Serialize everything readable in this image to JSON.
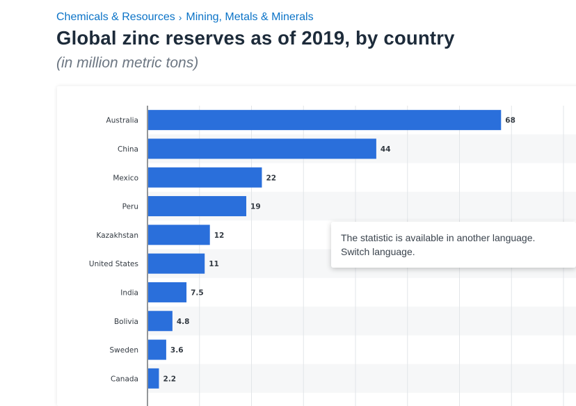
{
  "breadcrumb": {
    "items": [
      "Chemicals & Resources",
      "Mining, Metals & Minerals"
    ],
    "separator": "›"
  },
  "header": {
    "title": "Global zinc reserves as of 2019, by country",
    "subtitle": "(in million metric tons)"
  },
  "tooltip": {
    "message": "The statistic is available in another language.",
    "action": "Switch language."
  },
  "colors": {
    "bar": "#2a6fdb",
    "link": "#0b73c7",
    "title": "#1d2b3a"
  },
  "chart_data": {
    "type": "bar",
    "orientation": "horizontal",
    "categories": [
      "Australia",
      "China",
      "Mexico",
      "Peru",
      "Kazakhstan",
      "United States",
      "India",
      "Bolivia",
      "Sweden",
      "Canada"
    ],
    "values": [
      68,
      44,
      22,
      19,
      12,
      11,
      7.5,
      4.8,
      3.6,
      2.2
    ],
    "value_labels": [
      "68",
      "44",
      "22",
      "19",
      "12",
      "11",
      "7.5",
      "4.8",
      "3.6",
      "2.2"
    ],
    "xlim": [
      0,
      80
    ],
    "grid": true,
    "title": "Global zinc reserves as of 2019, by country",
    "xlabel": "",
    "ylabel": ""
  }
}
